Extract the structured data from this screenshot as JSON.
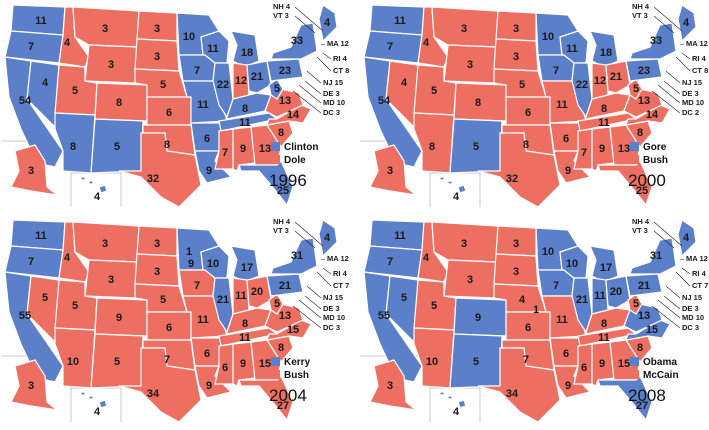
{
  "colors": {
    "dem": "#5b7fc9",
    "rep": "#ec6f62",
    "stroke": "#ffffff"
  },
  "maps": [
    {
      "year": "1996",
      "legend": [
        {
          "label": "Clinton",
          "party": "dem"
        },
        {
          "label": "Dole",
          "party": "rep"
        }
      ],
      "states": [
        {
          "name": "WA",
          "v": "11",
          "p": "dem"
        },
        {
          "name": "OR",
          "v": "7",
          "p": "dem"
        },
        {
          "name": "CA",
          "v": "54",
          "p": "dem"
        },
        {
          "name": "NV",
          "v": "4",
          "p": "dem"
        },
        {
          "name": "ID",
          "v": "4",
          "p": "rep"
        },
        {
          "name": "MT",
          "v": "3",
          "p": "rep"
        },
        {
          "name": "WY",
          "v": "3",
          "p": "rep"
        },
        {
          "name": "UT",
          "v": "5",
          "p": "rep"
        },
        {
          "name": "AZ",
          "v": "8",
          "p": "dem"
        },
        {
          "name": "CO",
          "v": "8",
          "p": "rep"
        },
        {
          "name": "NM",
          "v": "5",
          "p": "dem"
        },
        {
          "name": "ND",
          "v": "3",
          "p": "rep"
        },
        {
          "name": "SD",
          "v": "3",
          "p": "rep"
        },
        {
          "name": "NE",
          "v": "5",
          "p": "rep"
        },
        {
          "name": "KS",
          "v": "6",
          "p": "rep"
        },
        {
          "name": "OK",
          "v": "8",
          "p": "rep"
        },
        {
          "name": "TX",
          "v": "32",
          "p": "rep"
        },
        {
          "name": "MN",
          "v": "10",
          "p": "dem"
        },
        {
          "name": "IA",
          "v": "7",
          "p": "dem"
        },
        {
          "name": "MO",
          "v": "11",
          "p": "dem"
        },
        {
          "name": "AR",
          "v": "6",
          "p": "dem"
        },
        {
          "name": "LA",
          "v": "9",
          "p": "dem"
        },
        {
          "name": "WI",
          "v": "11",
          "p": "dem"
        },
        {
          "name": "IL",
          "v": "22",
          "p": "dem"
        },
        {
          "name": "MI",
          "v": "18",
          "p": "dem"
        },
        {
          "name": "IN",
          "v": "12",
          "p": "rep"
        },
        {
          "name": "OH",
          "v": "21",
          "p": "dem"
        },
        {
          "name": "KY",
          "v": "8",
          "p": "dem"
        },
        {
          "name": "TN",
          "v": "11",
          "p": "dem"
        },
        {
          "name": "MS",
          "v": "7",
          "p": "rep"
        },
        {
          "name": "AL",
          "v": "9",
          "p": "rep"
        },
        {
          "name": "GA",
          "v": "13",
          "p": "rep"
        },
        {
          "name": "FL",
          "v": "25",
          "p": "dem"
        },
        {
          "name": "SC",
          "v": "8",
          "p": "rep"
        },
        {
          "name": "NC",
          "v": "14",
          "p": "rep"
        },
        {
          "name": "VA",
          "v": "13",
          "p": "rep"
        },
        {
          "name": "WV",
          "v": "5",
          "p": "dem"
        },
        {
          "name": "PA",
          "v": "23",
          "p": "dem"
        },
        {
          "name": "NY",
          "v": "33",
          "p": "dem"
        },
        {
          "name": "ME",
          "v": "4",
          "p": "dem"
        },
        {
          "name": "AK",
          "v": "3",
          "p": "rep"
        },
        {
          "name": "HI",
          "v": "4",
          "p": "dem"
        }
      ],
      "callouts": [
        {
          "name": "NH",
          "text": "NH 4",
          "p": "dem"
        },
        {
          "name": "VT",
          "text": "VT 3",
          "p": "dem"
        },
        {
          "name": "MA",
          "text": "MA 12",
          "p": "dem"
        },
        {
          "name": "RI",
          "text": "RI 4",
          "p": "dem"
        },
        {
          "name": "CT",
          "text": "CT 8",
          "p": "dem"
        },
        {
          "name": "NJ",
          "text": "NJ 15",
          "p": "dem"
        },
        {
          "name": "DE",
          "text": "DE 3",
          "p": "dem"
        },
        {
          "name": "MD",
          "text": "MD 10",
          "p": "dem"
        },
        {
          "name": "DC",
          "text": "DC 3",
          "p": "dem"
        }
      ]
    },
    {
      "year": "2000",
      "legend": [
        {
          "label": "Gore",
          "party": "dem"
        },
        {
          "label": "Bush",
          "party": "rep"
        }
      ],
      "states": [
        {
          "name": "WA",
          "v": "11",
          "p": "dem"
        },
        {
          "name": "OR",
          "v": "7",
          "p": "dem"
        },
        {
          "name": "CA",
          "v": "54",
          "p": "dem"
        },
        {
          "name": "NV",
          "v": "4",
          "p": "rep"
        },
        {
          "name": "ID",
          "v": "4",
          "p": "rep"
        },
        {
          "name": "MT",
          "v": "3",
          "p": "rep"
        },
        {
          "name": "WY",
          "v": "3",
          "p": "rep"
        },
        {
          "name": "UT",
          "v": "5",
          "p": "rep"
        },
        {
          "name": "AZ",
          "v": "8",
          "p": "rep"
        },
        {
          "name": "CO",
          "v": "8",
          "p": "rep"
        },
        {
          "name": "NM",
          "v": "5",
          "p": "dem"
        },
        {
          "name": "ND",
          "v": "3",
          "p": "rep"
        },
        {
          "name": "SD",
          "v": "3",
          "p": "rep"
        },
        {
          "name": "NE",
          "v": "5",
          "p": "rep"
        },
        {
          "name": "KS",
          "v": "6",
          "p": "rep"
        },
        {
          "name": "OK",
          "v": "8",
          "p": "rep"
        },
        {
          "name": "TX",
          "v": "32",
          "p": "rep"
        },
        {
          "name": "MN",
          "v": "10",
          "p": "dem"
        },
        {
          "name": "IA",
          "v": "7",
          "p": "dem"
        },
        {
          "name": "MO",
          "v": "11",
          "p": "rep"
        },
        {
          "name": "AR",
          "v": "6",
          "p": "rep"
        },
        {
          "name": "LA",
          "v": "9",
          "p": "rep"
        },
        {
          "name": "WI",
          "v": "11",
          "p": "dem"
        },
        {
          "name": "IL",
          "v": "22",
          "p": "dem"
        },
        {
          "name": "MI",
          "v": "18",
          "p": "dem"
        },
        {
          "name": "IN",
          "v": "12",
          "p": "rep"
        },
        {
          "name": "OH",
          "v": "21",
          "p": "rep"
        },
        {
          "name": "KY",
          "v": "8",
          "p": "rep"
        },
        {
          "name": "TN",
          "v": "11",
          "p": "rep"
        },
        {
          "name": "MS",
          "v": "7",
          "p": "rep"
        },
        {
          "name": "AL",
          "v": "9",
          "p": "rep"
        },
        {
          "name": "GA",
          "v": "13",
          "p": "rep"
        },
        {
          "name": "FL",
          "v": "25",
          "p": "rep"
        },
        {
          "name": "SC",
          "v": "8",
          "p": "rep"
        },
        {
          "name": "NC",
          "v": "14",
          "p": "rep"
        },
        {
          "name": "VA",
          "v": "13",
          "p": "rep"
        },
        {
          "name": "WV",
          "v": "5",
          "p": "rep"
        },
        {
          "name": "PA",
          "v": "23",
          "p": "dem"
        },
        {
          "name": "NY",
          "v": "33",
          "p": "dem"
        },
        {
          "name": "ME",
          "v": "4",
          "p": "dem"
        },
        {
          "name": "AK",
          "v": "3",
          "p": "rep"
        },
        {
          "name": "HI",
          "v": "4",
          "p": "dem"
        }
      ],
      "callouts": [
        {
          "name": "NH",
          "text": "NH 4",
          "p": "rep"
        },
        {
          "name": "VT",
          "text": "VT 3",
          "p": "dem"
        },
        {
          "name": "MA",
          "text": "MA 12",
          "p": "dem"
        },
        {
          "name": "RI",
          "text": "RI 4",
          "p": "dem"
        },
        {
          "name": "CT",
          "text": "CT 8",
          "p": "dem"
        },
        {
          "name": "NJ",
          "text": "NJ 15",
          "p": "dem"
        },
        {
          "name": "DE",
          "text": "DE 3",
          "p": "dem"
        },
        {
          "name": "MD",
          "text": "MD 10",
          "p": "dem"
        },
        {
          "name": "DC",
          "text": "DC 2",
          "p": "dem"
        }
      ]
    },
    {
      "year": "2004",
      "legend": [
        {
          "label": "Kerry",
          "party": "dem"
        },
        {
          "label": "Bush",
          "party": "rep"
        }
      ],
      "states": [
        {
          "name": "WA",
          "v": "11",
          "p": "dem"
        },
        {
          "name": "OR",
          "v": "7",
          "p": "dem"
        },
        {
          "name": "CA",
          "v": "55",
          "p": "dem"
        },
        {
          "name": "NV",
          "v": "5",
          "p": "rep"
        },
        {
          "name": "ID",
          "v": "4",
          "p": "rep"
        },
        {
          "name": "MT",
          "v": "3",
          "p": "rep"
        },
        {
          "name": "WY",
          "v": "3",
          "p": "rep"
        },
        {
          "name": "UT",
          "v": "5",
          "p": "rep"
        },
        {
          "name": "AZ",
          "v": "10",
          "p": "rep"
        },
        {
          "name": "CO",
          "v": "9",
          "p": "rep"
        },
        {
          "name": "NM",
          "v": "5",
          "p": "rep"
        },
        {
          "name": "ND",
          "v": "3",
          "p": "rep"
        },
        {
          "name": "SD",
          "v": "3",
          "p": "rep"
        },
        {
          "name": "NE",
          "v": "5",
          "p": "rep"
        },
        {
          "name": "KS",
          "v": "6",
          "p": "rep"
        },
        {
          "name": "OK",
          "v": "7",
          "p": "rep"
        },
        {
          "name": "TX",
          "v": "34",
          "p": "rep"
        },
        {
          "name": "MN",
          "v": "1",
          "p": "dem"
        },
        {
          "name": "MN2",
          "v": "9",
          "p": "dem"
        },
        {
          "name": "IA",
          "v": "7",
          "p": "rep"
        },
        {
          "name": "MO",
          "v": "11",
          "p": "rep"
        },
        {
          "name": "AR",
          "v": "6",
          "p": "rep"
        },
        {
          "name": "LA",
          "v": "9",
          "p": "rep"
        },
        {
          "name": "WI",
          "v": "10",
          "p": "dem"
        },
        {
          "name": "IL",
          "v": "21",
          "p": "dem"
        },
        {
          "name": "MI",
          "v": "17",
          "p": "dem"
        },
        {
          "name": "IN",
          "v": "11",
          "p": "rep"
        },
        {
          "name": "OH",
          "v": "20",
          "p": "rep"
        },
        {
          "name": "KY",
          "v": "8",
          "p": "rep"
        },
        {
          "name": "TN",
          "v": "11",
          "p": "rep"
        },
        {
          "name": "MS",
          "v": "6",
          "p": "rep"
        },
        {
          "name": "AL",
          "v": "9",
          "p": "rep"
        },
        {
          "name": "GA",
          "v": "15",
          "p": "rep"
        },
        {
          "name": "FL",
          "v": "27",
          "p": "rep"
        },
        {
          "name": "SC",
          "v": "8",
          "p": "rep"
        },
        {
          "name": "NC",
          "v": "15",
          "p": "rep"
        },
        {
          "name": "VA",
          "v": "13",
          "p": "rep"
        },
        {
          "name": "WV",
          "v": "5",
          "p": "rep"
        },
        {
          "name": "PA",
          "v": "21",
          "p": "dem"
        },
        {
          "name": "NY",
          "v": "31",
          "p": "dem"
        },
        {
          "name": "ME",
          "v": "4",
          "p": "dem"
        },
        {
          "name": "AK",
          "v": "3",
          "p": "rep"
        },
        {
          "name": "HI",
          "v": "4",
          "p": "dem"
        }
      ],
      "callouts": [
        {
          "name": "NH",
          "text": "NH 4",
          "p": "dem"
        },
        {
          "name": "VT",
          "text": "VT 3",
          "p": "dem"
        },
        {
          "name": "MA",
          "text": "MA 12",
          "p": "dem"
        },
        {
          "name": "RI",
          "text": "RI 4",
          "p": "dem"
        },
        {
          "name": "CT",
          "text": "CT 7",
          "p": "dem"
        },
        {
          "name": "NJ",
          "text": "NJ 15",
          "p": "dem"
        },
        {
          "name": "DE",
          "text": "DE 3",
          "p": "dem"
        },
        {
          "name": "MD",
          "text": "MD 10",
          "p": "dem"
        },
        {
          "name": "DC",
          "text": "DC 3",
          "p": "dem"
        }
      ]
    },
    {
      "year": "2008",
      "legend": [
        {
          "label": "Obama",
          "party": "dem"
        },
        {
          "label": "McCain",
          "party": "rep"
        }
      ],
      "states": [
        {
          "name": "WA",
          "v": "11",
          "p": "dem"
        },
        {
          "name": "OR",
          "v": "7",
          "p": "dem"
        },
        {
          "name": "CA",
          "v": "55",
          "p": "dem"
        },
        {
          "name": "NV",
          "v": "5",
          "p": "dem"
        },
        {
          "name": "ID",
          "v": "4",
          "p": "rep"
        },
        {
          "name": "MT",
          "v": "3",
          "p": "rep"
        },
        {
          "name": "WY",
          "v": "3",
          "p": "rep"
        },
        {
          "name": "UT",
          "v": "5",
          "p": "rep"
        },
        {
          "name": "AZ",
          "v": "10",
          "p": "rep"
        },
        {
          "name": "CO",
          "v": "9",
          "p": "dem"
        },
        {
          "name": "NM",
          "v": "5",
          "p": "dem"
        },
        {
          "name": "ND",
          "v": "3",
          "p": "rep"
        },
        {
          "name": "SD",
          "v": "3",
          "p": "rep"
        },
        {
          "name": "NE",
          "v": "4",
          "p": "rep"
        },
        {
          "name": "NE2",
          "v": "1",
          "p": "dem"
        },
        {
          "name": "KS",
          "v": "6",
          "p": "rep"
        },
        {
          "name": "OK",
          "v": "7",
          "p": "rep"
        },
        {
          "name": "TX",
          "v": "34",
          "p": "rep"
        },
        {
          "name": "MN",
          "v": "10",
          "p": "dem"
        },
        {
          "name": "IA",
          "v": "7",
          "p": "dem"
        },
        {
          "name": "MO",
          "v": "11",
          "p": "rep"
        },
        {
          "name": "AR",
          "v": "6",
          "p": "rep"
        },
        {
          "name": "LA",
          "v": "9",
          "p": "rep"
        },
        {
          "name": "WI",
          "v": "10",
          "p": "dem"
        },
        {
          "name": "IL",
          "v": "21",
          "p": "dem"
        },
        {
          "name": "MI",
          "v": "17",
          "p": "dem"
        },
        {
          "name": "IN",
          "v": "11",
          "p": "dem"
        },
        {
          "name": "OH",
          "v": "20",
          "p": "dem"
        },
        {
          "name": "KY",
          "v": "8",
          "p": "rep"
        },
        {
          "name": "TN",
          "v": "11",
          "p": "rep"
        },
        {
          "name": "MS",
          "v": "6",
          "p": "rep"
        },
        {
          "name": "AL",
          "v": "9",
          "p": "rep"
        },
        {
          "name": "GA",
          "v": "15",
          "p": "rep"
        },
        {
          "name": "FL",
          "v": "27",
          "p": "dem"
        },
        {
          "name": "SC",
          "v": "8",
          "p": "rep"
        },
        {
          "name": "NC",
          "v": "15",
          "p": "dem"
        },
        {
          "name": "VA",
          "v": "13",
          "p": "dem"
        },
        {
          "name": "WV",
          "v": "5",
          "p": "rep"
        },
        {
          "name": "PA",
          "v": "21",
          "p": "dem"
        },
        {
          "name": "NY",
          "v": "31",
          "p": "dem"
        },
        {
          "name": "ME",
          "v": "4",
          "p": "dem"
        },
        {
          "name": "AK",
          "v": "3",
          "p": "rep"
        },
        {
          "name": "HI",
          "v": "4",
          "p": "dem"
        }
      ],
      "callouts": [
        {
          "name": "NH",
          "text": "NH 4",
          "p": "dem"
        },
        {
          "name": "VT",
          "text": "VT 3",
          "p": "dem"
        },
        {
          "name": "MA",
          "text": "MA 12",
          "p": "dem"
        },
        {
          "name": "RI",
          "text": "RI 4",
          "p": "dem"
        },
        {
          "name": "CT",
          "text": "CT 7",
          "p": "dem"
        },
        {
          "name": "NJ",
          "text": "NJ 15",
          "p": "dem"
        },
        {
          "name": "DE",
          "text": "DE 3",
          "p": "dem"
        },
        {
          "name": "MD",
          "text": "MD 10",
          "p": "dem"
        },
        {
          "name": "DC",
          "text": "DC 3",
          "p": "dem"
        }
      ]
    }
  ]
}
